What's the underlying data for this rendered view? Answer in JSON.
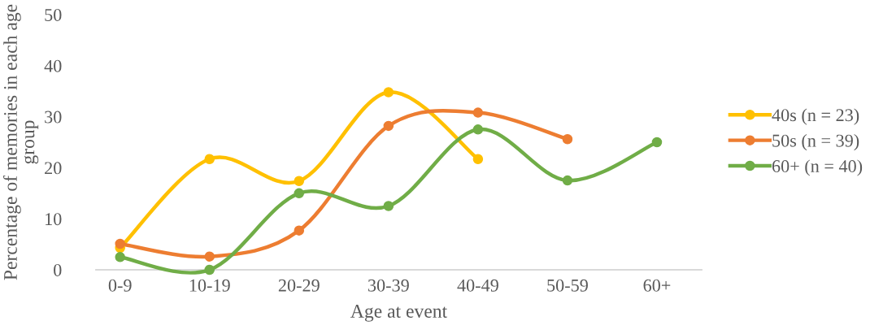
{
  "chart_data": {
    "type": "line",
    "xlabel": "Age at event",
    "ylabel": "Percentage of memories in each age group",
    "categories": [
      "0-9",
      "10-19",
      "20-29",
      "30-39",
      "40-49",
      "50-59",
      "60+"
    ],
    "series": [
      {
        "name": "40s (n = 23)",
        "color": "#ffc000",
        "values": [
          4.3,
          21.7,
          17.4,
          34.8,
          21.7,
          null,
          null
        ]
      },
      {
        "name": "50s (n = 39)",
        "color": "#ed7d31",
        "values": [
          5.1,
          2.6,
          7.7,
          28.2,
          30.8,
          25.6,
          null
        ]
      },
      {
        "name": "60+ (n = 40)",
        "color": "#70ad47",
        "values": [
          2.5,
          0,
          15,
          12.5,
          27.5,
          17.5,
          25
        ]
      }
    ],
    "ylim": [
      0,
      50
    ],
    "yticks": [
      0,
      10,
      20,
      30,
      40,
      50
    ],
    "grid": false,
    "legend": "right",
    "marker": "circle",
    "line_style": "solid"
  }
}
